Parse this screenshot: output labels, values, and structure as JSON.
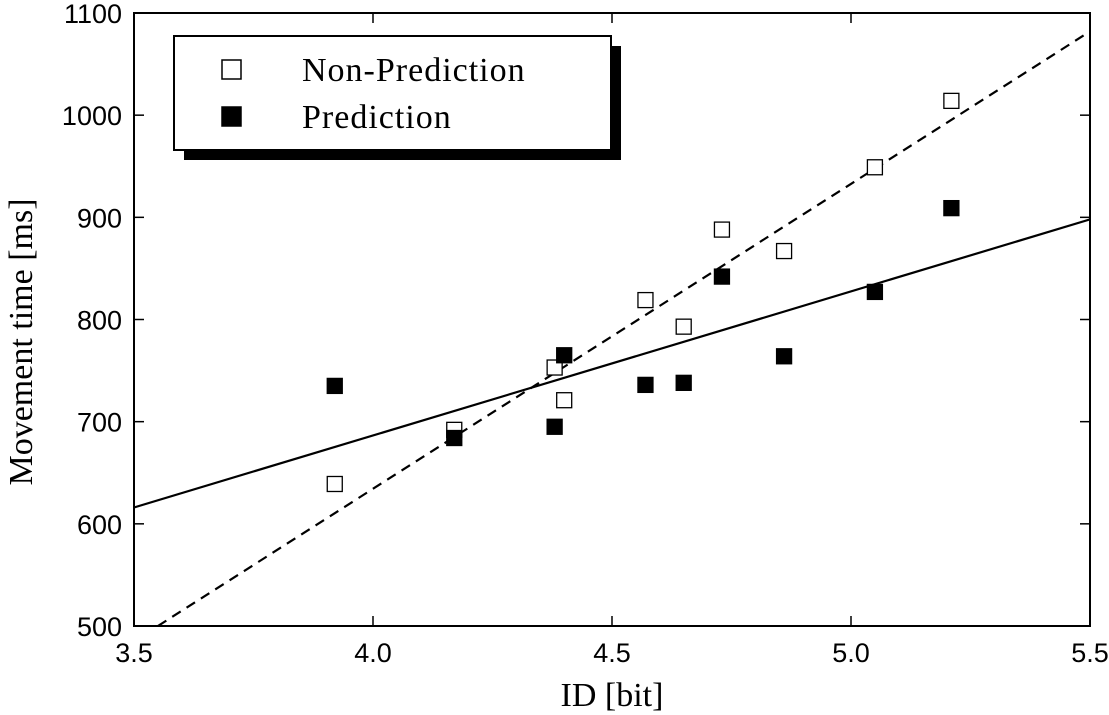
{
  "chart_data": {
    "type": "scatter",
    "xlabel": "ID [bit]",
    "ylabel": "Movement time [ms]",
    "xlim": [
      3.5,
      5.5
    ],
    "ylim": [
      500,
      1100
    ],
    "xticks": [
      3.5,
      4.0,
      4.5,
      5.0,
      5.5
    ],
    "xtick_labels": [
      "3.5",
      "4.0",
      "4.5",
      "5.0",
      "5.5"
    ],
    "yticks": [
      500,
      600,
      700,
      800,
      900,
      1000,
      1100
    ],
    "ytick_labels": [
      "500",
      "600",
      "700",
      "800",
      "900",
      "1000",
      "1100"
    ],
    "grid": false,
    "legend_position": "top-left",
    "series": [
      {
        "name": "Non-Prediction",
        "marker": "open-square",
        "line_style": "dashed",
        "points": [
          {
            "x": 3.92,
            "y": 639
          },
          {
            "x": 4.17,
            "y": 692
          },
          {
            "x": 4.38,
            "y": 753
          },
          {
            "x": 4.4,
            "y": 721
          },
          {
            "x": 4.57,
            "y": 819
          },
          {
            "x": 4.65,
            "y": 793
          },
          {
            "x": 4.73,
            "y": 888
          },
          {
            "x": 4.86,
            "y": 867
          },
          {
            "x": 5.05,
            "y": 949
          },
          {
            "x": 5.21,
            "y": 1014
          }
        ],
        "fit_line": [
          {
            "x": 3.55,
            "y": 500
          },
          {
            "x": 5.5,
            "y": 1082
          }
        ]
      },
      {
        "name": "Prediction",
        "marker": "filled-square",
        "line_style": "solid",
        "points": [
          {
            "x": 3.92,
            "y": 735
          },
          {
            "x": 4.17,
            "y": 684
          },
          {
            "x": 4.38,
            "y": 695
          },
          {
            "x": 4.4,
            "y": 765
          },
          {
            "x": 4.57,
            "y": 736
          },
          {
            "x": 4.65,
            "y": 738
          },
          {
            "x": 4.73,
            "y": 842
          },
          {
            "x": 4.86,
            "y": 764
          },
          {
            "x": 5.05,
            "y": 827
          },
          {
            "x": 5.21,
            "y": 909
          }
        ],
        "fit_line": [
          {
            "x": 3.5,
            "y": 616
          },
          {
            "x": 5.5,
            "y": 898
          }
        ]
      }
    ],
    "colors": {
      "marker": "#000000",
      "open_fill": "#ffffff",
      "axis": "#000000"
    }
  }
}
